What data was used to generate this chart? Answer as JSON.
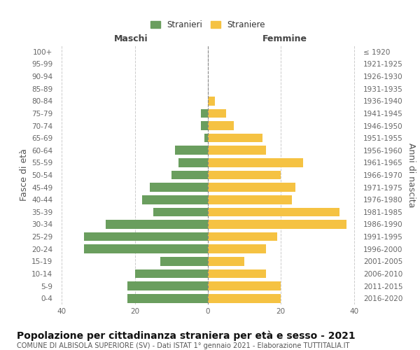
{
  "age_groups": [
    "0-4",
    "5-9",
    "10-14",
    "15-19",
    "20-24",
    "25-29",
    "30-34",
    "35-39",
    "40-44",
    "45-49",
    "50-54",
    "55-59",
    "60-64",
    "65-69",
    "70-74",
    "75-79",
    "80-84",
    "85-89",
    "90-94",
    "95-99",
    "100+"
  ],
  "birth_years": [
    "2016-2020",
    "2011-2015",
    "2006-2010",
    "2001-2005",
    "1996-2000",
    "1991-1995",
    "1986-1990",
    "1981-1985",
    "1976-1980",
    "1971-1975",
    "1966-1970",
    "1961-1965",
    "1956-1960",
    "1951-1955",
    "1946-1950",
    "1941-1945",
    "1936-1940",
    "1931-1935",
    "1926-1930",
    "1921-1925",
    "≤ 1920"
  ],
  "maschi": [
    22,
    22,
    20,
    13,
    34,
    34,
    28,
    15,
    18,
    16,
    10,
    8,
    9,
    1,
    2,
    2,
    0,
    0,
    0,
    0,
    0
  ],
  "femmine": [
    20,
    20,
    16,
    10,
    16,
    19,
    38,
    36,
    23,
    24,
    20,
    26,
    16,
    15,
    7,
    5,
    2,
    0,
    0,
    0,
    0
  ],
  "male_color": "#6a9e5e",
  "female_color": "#f5c242",
  "background_color": "#ffffff",
  "grid_color": "#cccccc",
  "title": "Popolazione per cittadinanza straniera per età e sesso - 2021",
  "subtitle": "COMUNE DI ALBISOLA SUPERIORE (SV) - Dati ISTAT 1° gennaio 2021 - Elaborazione TUTTITALIA.IT",
  "xlabel_left": "Maschi",
  "xlabel_right": "Femmine",
  "ylabel_left": "Fasce di età",
  "ylabel_right": "Anni di nascita",
  "legend_male": "Stranieri",
  "legend_female": "Straniere",
  "xlim": 42,
  "tick_fontsize": 7.5,
  "label_fontsize": 9,
  "title_fontsize": 10,
  "subtitle_fontsize": 7.0
}
